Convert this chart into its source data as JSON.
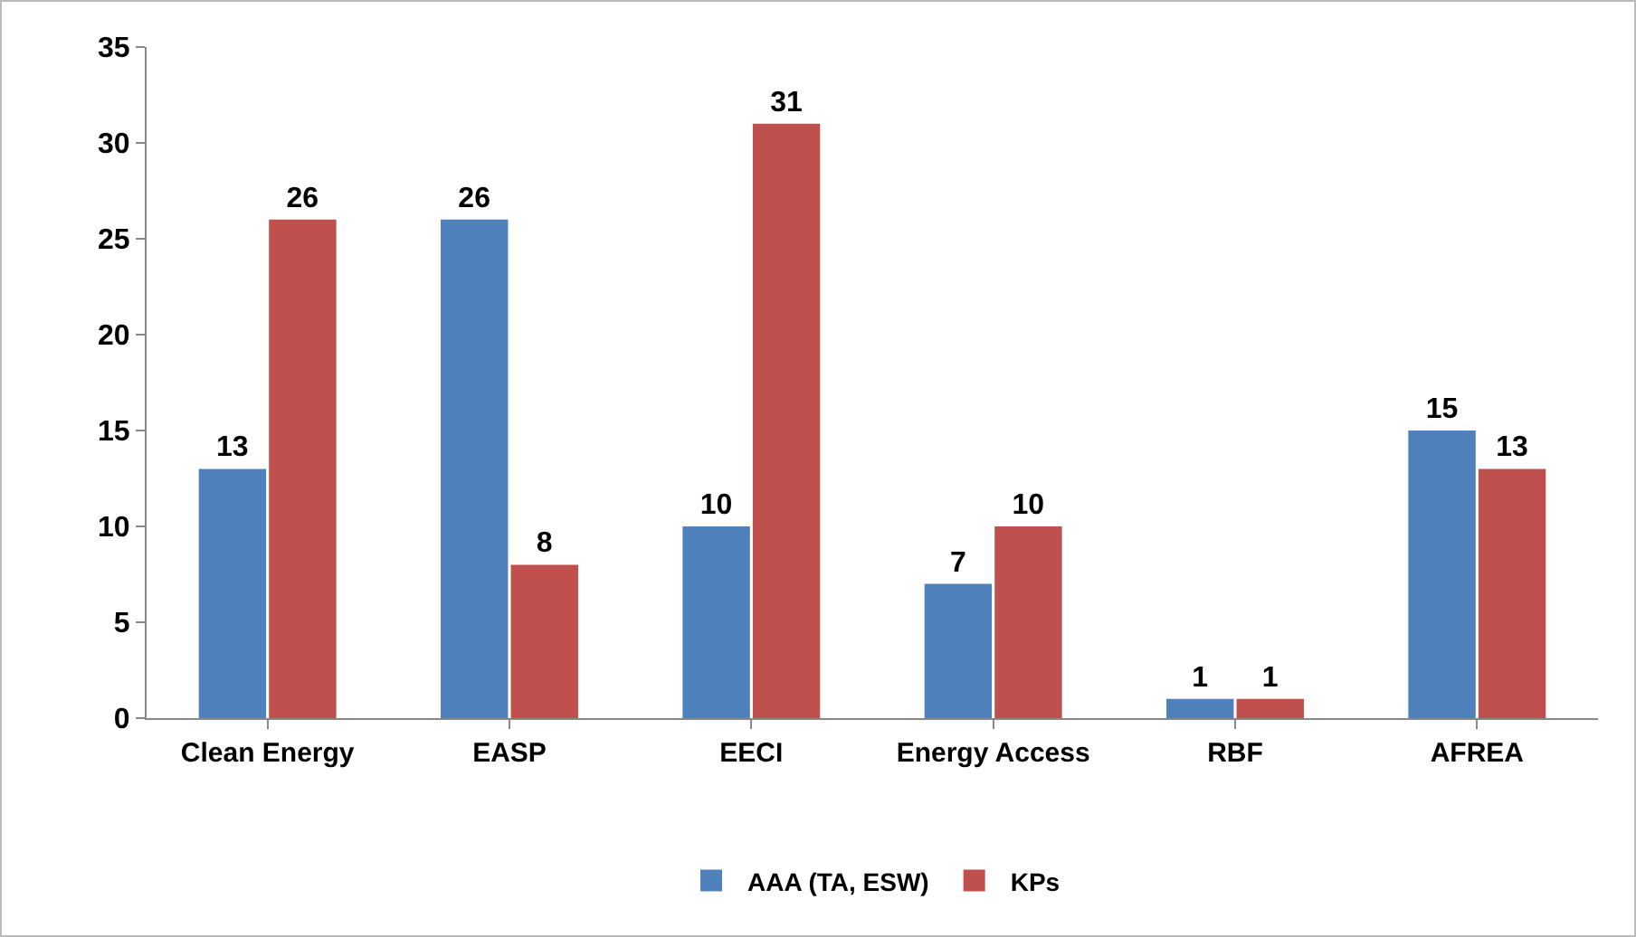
{
  "chart_data": {
    "type": "bar",
    "categories": [
      "Clean Energy",
      "EASP",
      "EECI",
      "Energy Access",
      "RBF",
      "AFREA"
    ],
    "series": [
      {
        "name": "AAA (TA, ESW)",
        "color": "#4f81bd",
        "values": [
          13,
          26,
          10,
          7,
          1,
          15
        ]
      },
      {
        "name": "KPs",
        "color": "#c0504d",
        "values": [
          26,
          8,
          31,
          10,
          1,
          13
        ]
      }
    ],
    "ylim": [
      0,
      35
    ],
    "yticks": [
      0,
      5,
      10,
      15,
      20,
      25,
      30,
      35
    ],
    "grid": false,
    "legend": "bottom",
    "data_labels": true
  }
}
